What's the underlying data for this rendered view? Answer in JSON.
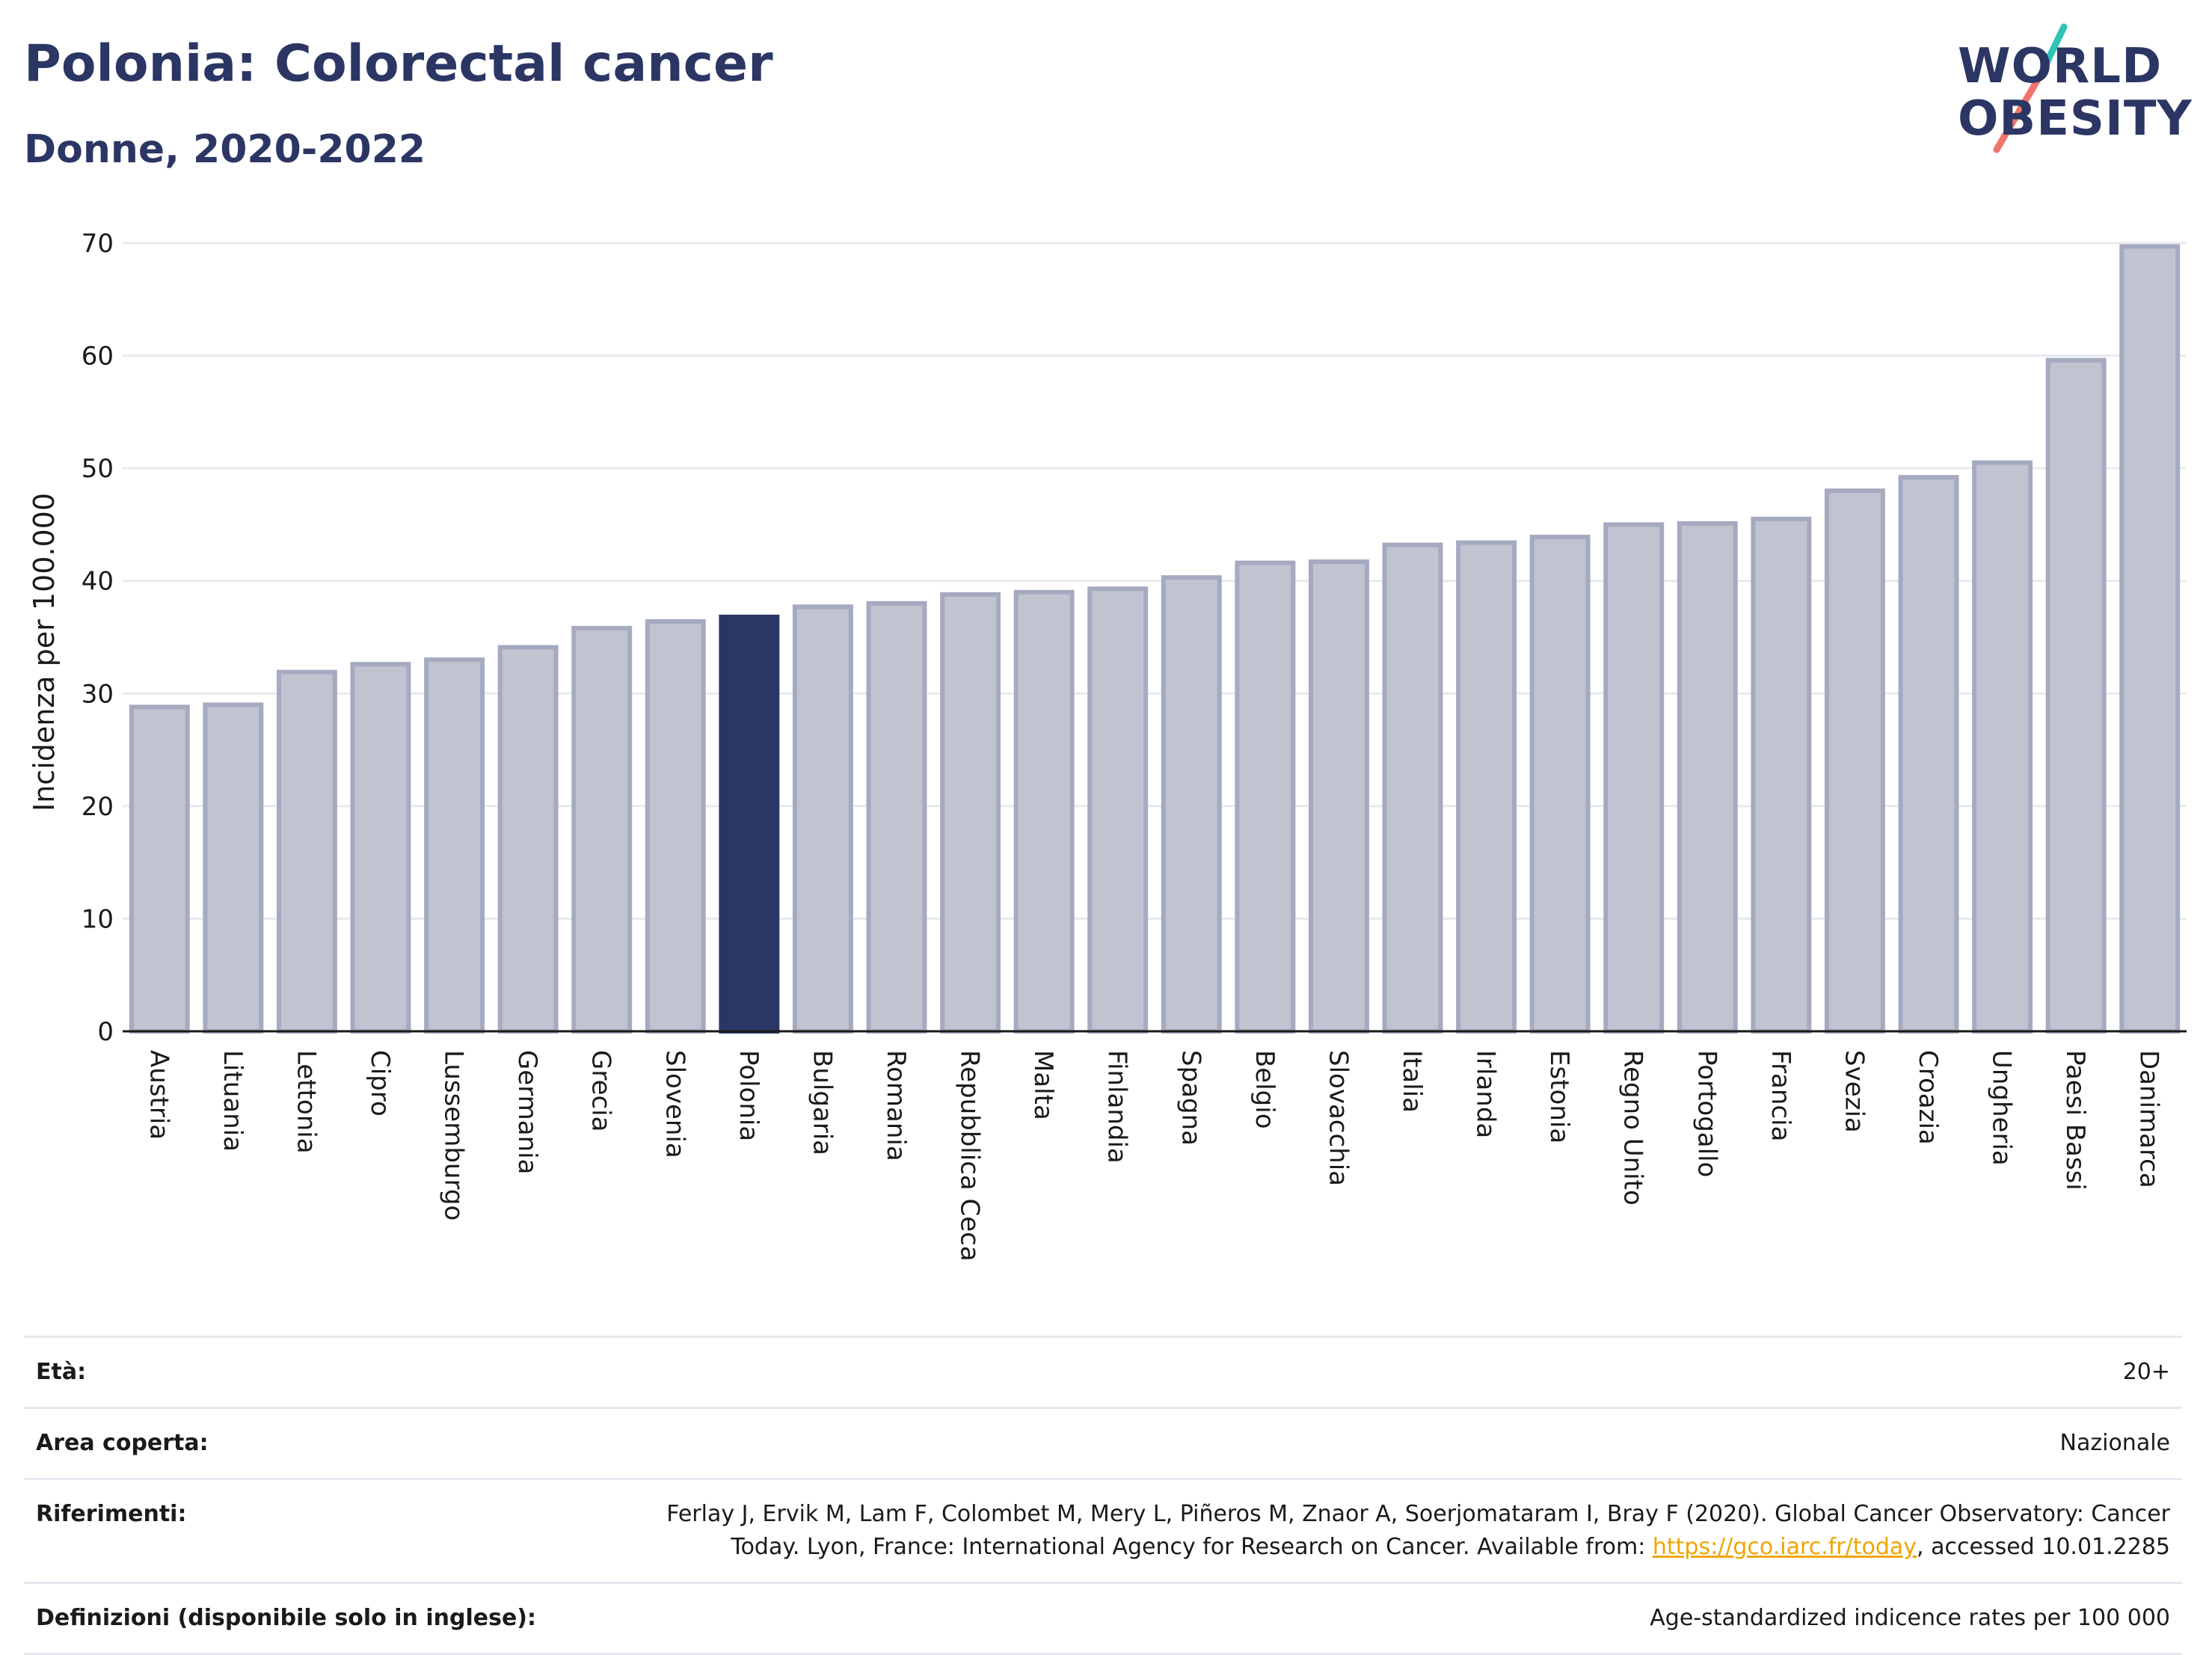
{
  "header": {
    "title": "Polonia: Colorectal cancer",
    "subtitle": "Donne, 2020-2022"
  },
  "logo": {
    "line1": "WORLD",
    "line2": "OBESITY",
    "colors": {
      "primary": "#2b3664",
      "teal": "#2ec4b6",
      "coral": "#f0746a"
    }
  },
  "colors": {
    "bar_default": "#c0c3d0",
    "bar_border": "#a5aac0",
    "bar_highlight": "#2b3664",
    "grid": "#e8e9ef",
    "axis": "#1a1a1a"
  },
  "chart_data": {
    "type": "bar",
    "title": "Polonia: Colorectal cancer",
    "subtitle": "Donne, 2020-2022",
    "ylabel": "Incidenza per 100.000",
    "xlabel": "",
    "ylim": [
      0,
      70
    ],
    "yticks": [
      0,
      10,
      20,
      30,
      40,
      50,
      60,
      70
    ],
    "grid": true,
    "highlight": "Polonia",
    "categories": [
      "Austria",
      "Lituania",
      "Lettonia",
      "Cipro",
      "Lussemburgo",
      "Germania",
      "Grecia",
      "Slovenia",
      "Polonia",
      "Bulgaria",
      "Romania",
      "Repubblica Ceca",
      "Malta",
      "Finlandia",
      "Spagna",
      "Belgio",
      "Slovacchia",
      "Italia",
      "Irlanda",
      "Estonia",
      "Regno Unito",
      "Portogallo",
      "Francia",
      "Svezia",
      "Croazia",
      "Ungheria",
      "Paesi Bassi",
      "Danimarca"
    ],
    "values": [
      28.8,
      29.0,
      31.9,
      32.6,
      33.0,
      34.1,
      35.8,
      36.4,
      36.8,
      37.7,
      38.0,
      38.8,
      39.0,
      39.3,
      40.3,
      41.6,
      41.7,
      43.2,
      43.4,
      43.9,
      45.0,
      45.1,
      45.5,
      48.0,
      49.2,
      50.5,
      59.6,
      69.7
    ]
  },
  "meta": [
    {
      "label": "Età:",
      "value": "20+"
    },
    {
      "label": "Area coperta:",
      "value": "Nazionale"
    },
    {
      "label": "Riferimenti:",
      "value_line1": "Ferlay J, Ervik M, Lam F, Colombet M, Mery L, Piñeros M, Znaor A, Soerjomataram I, Bray F (2020). Global Cancer Observatory: Cancer",
      "value_line2_pre": "Today. Lyon, France: International Agency for Research on Cancer. Available from: ",
      "link": "https://gco.iarc.fr/today",
      "value_line2_post": ", accessed 10.01.2285"
    },
    {
      "label": "Definizioni (disponibile solo in inglese):",
      "value": "Age-standardized indicence rates per 100 000"
    }
  ]
}
